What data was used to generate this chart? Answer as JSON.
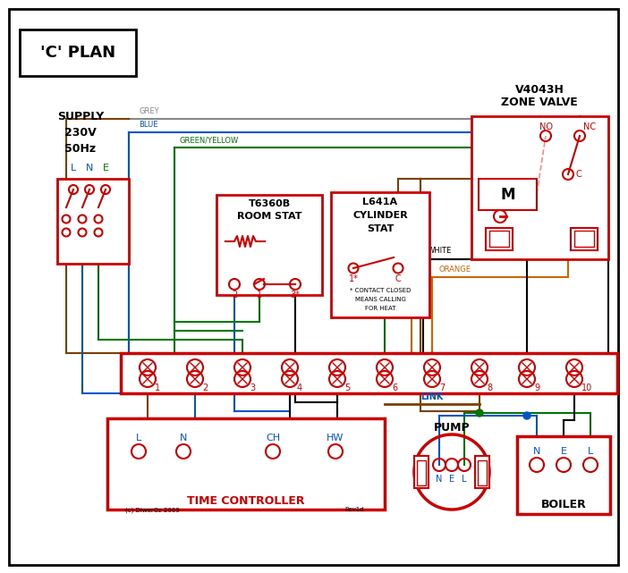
{
  "title": "'C' PLAN",
  "bg_color": "#ffffff",
  "red": "#cc0000",
  "blue": "#0055cc",
  "green": "#007700",
  "grey": "#888888",
  "brown": "#7B3F00",
  "orange": "#CC6600",
  "black": "#000000",
  "pink": "#ff8888",
  "white": "#ffffff",
  "time_ctrl_label": "TIME CONTROLLER",
  "pump_label": "PUMP",
  "boiler_label": "BOILER",
  "supply_lines": [
    "SUPPLY",
    "230V",
    "50Hz"
  ]
}
